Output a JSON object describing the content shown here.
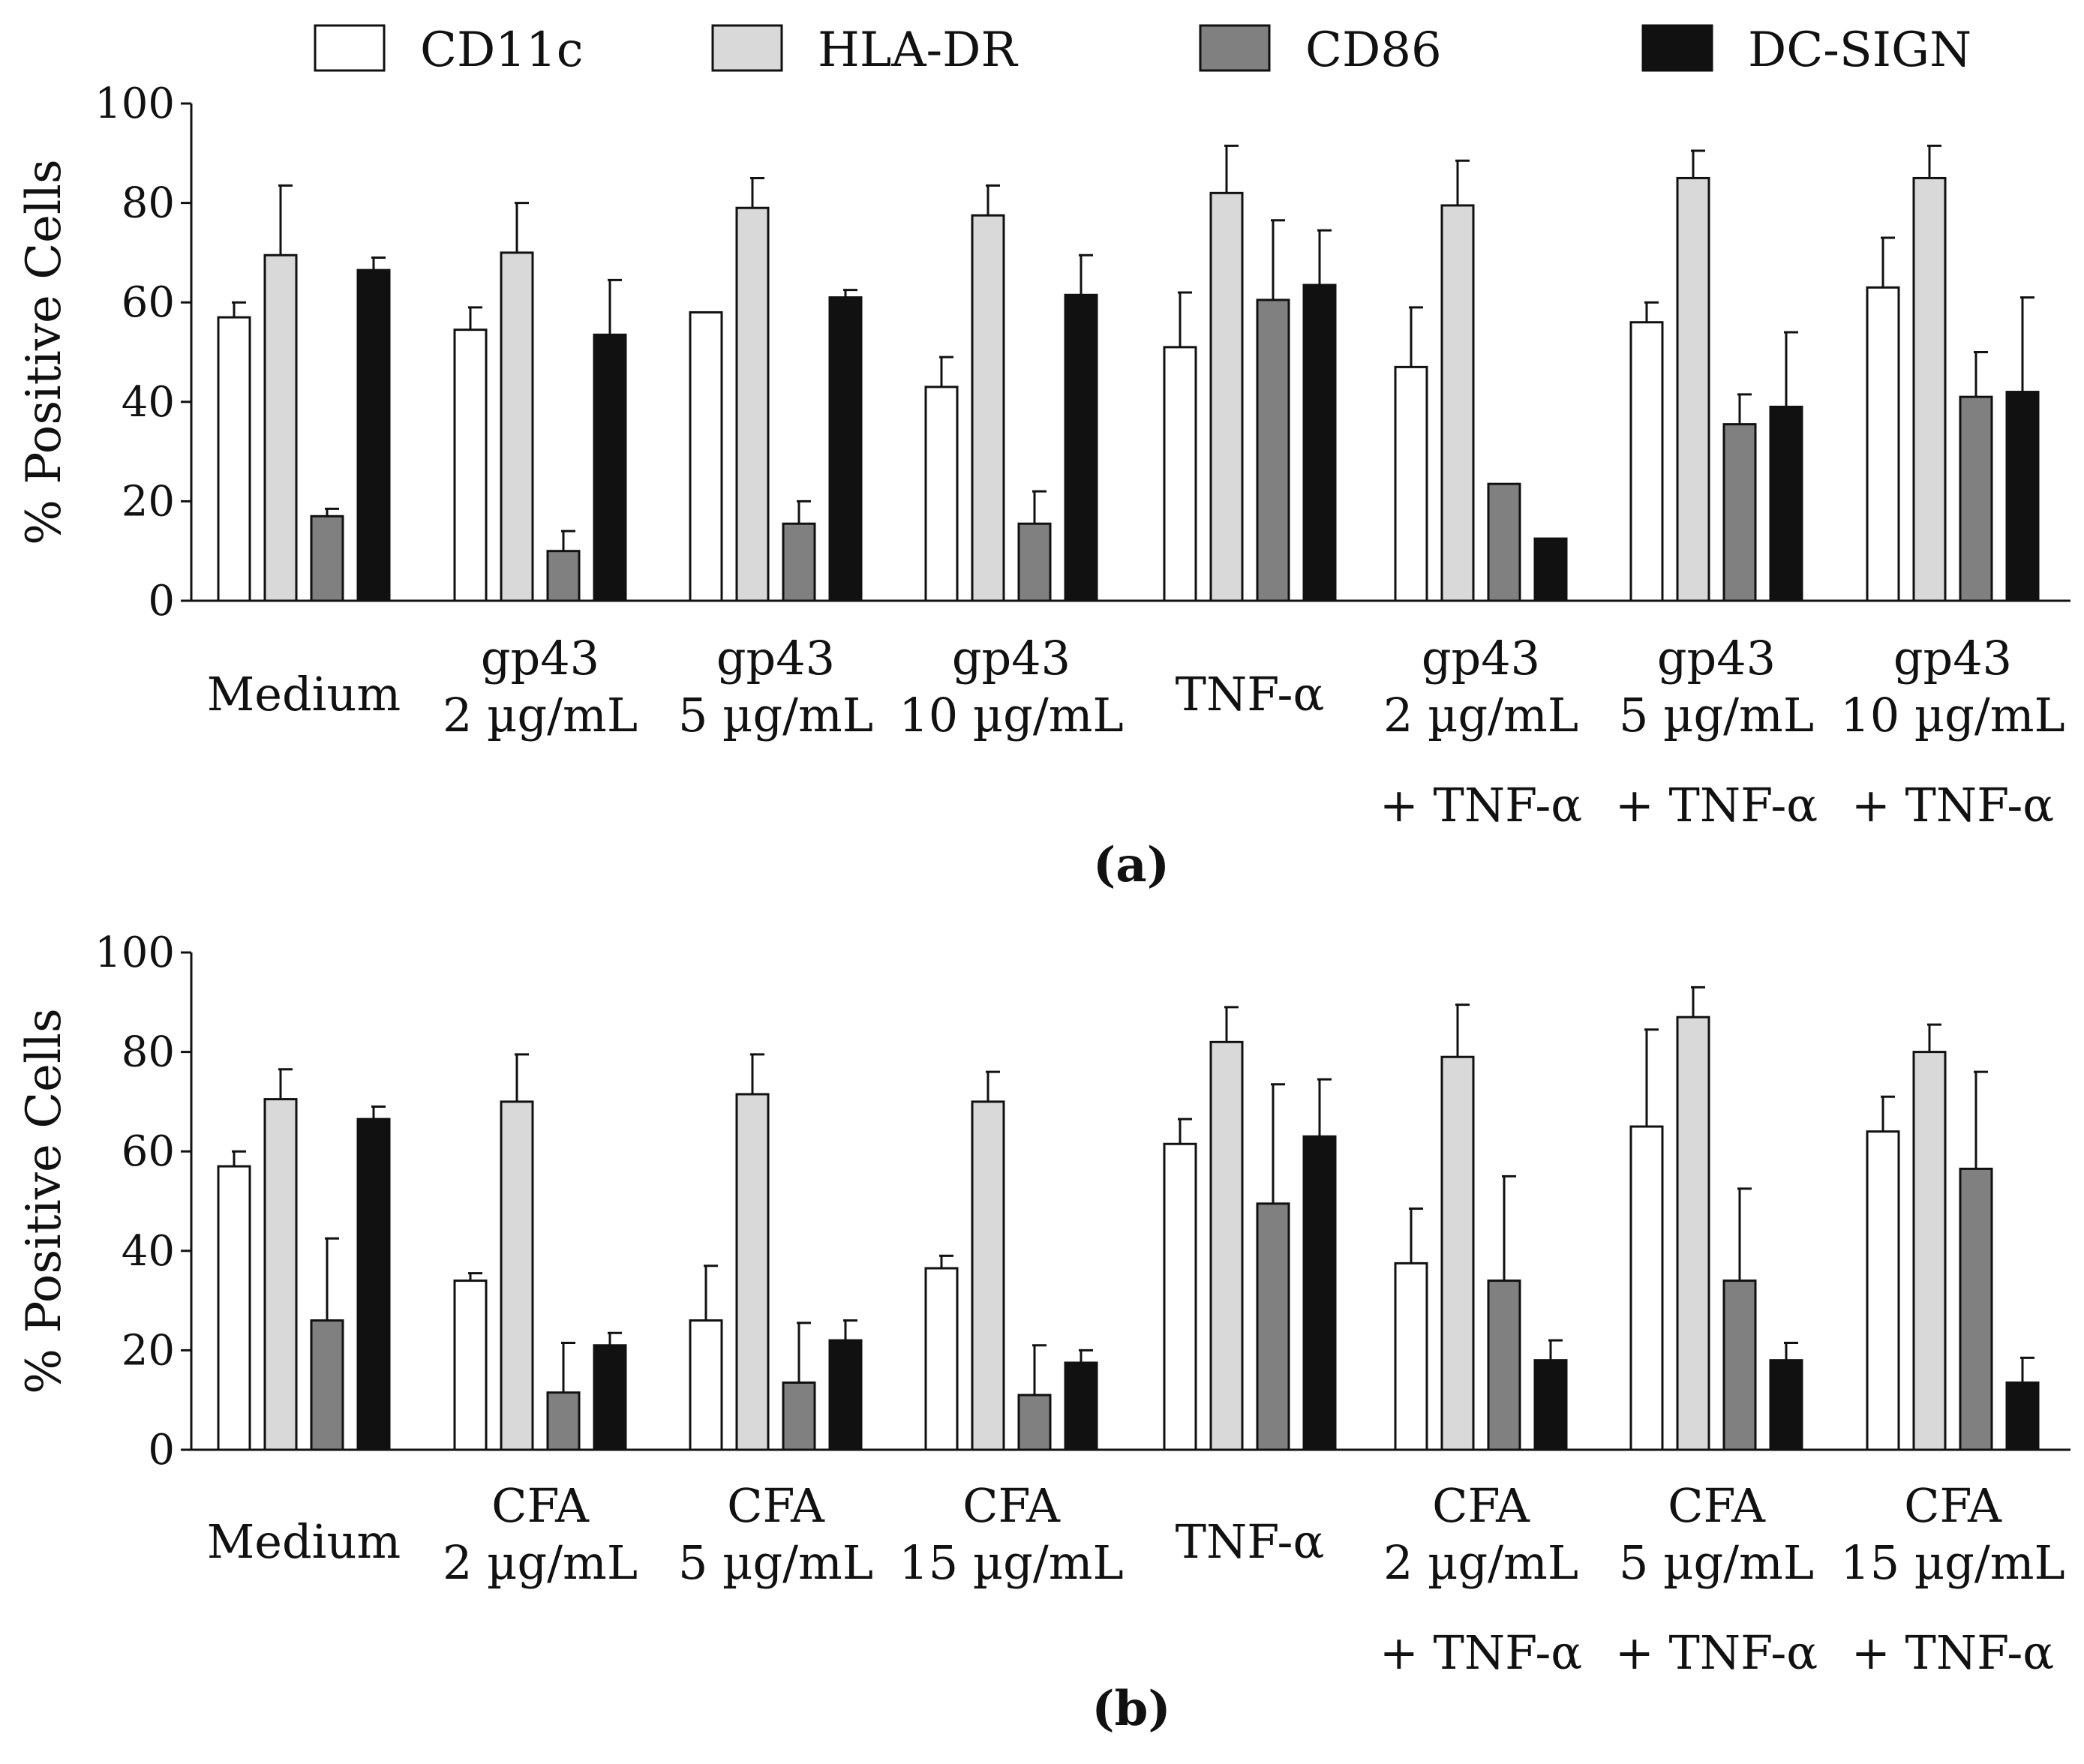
{
  "legend": [
    {
      "name": "CD11c",
      "color": "#ffffff"
    },
    {
      "name": "HLA-DR",
      "color": "#d9d9d9"
    },
    {
      "name": "CD86",
      "color": "#808080"
    },
    {
      "name": "DC-SIGN",
      "color": "#111111"
    }
  ],
  "chart_data": [
    {
      "type": "bar",
      "panel_label": "(a)",
      "ylabel": "% Positive Cells",
      "xlabel": "",
      "ylim": [
        0,
        100
      ],
      "yticks": [
        0,
        20,
        40,
        60,
        80,
        100
      ],
      "grid": false,
      "legend_position": "top",
      "categories": [
        [
          "Medium"
        ],
        [
          "gp43",
          "2 µg/mL"
        ],
        [
          "gp43",
          "5 µg/mL"
        ],
        [
          "gp43",
          "10 µg/mL"
        ],
        [
          "TNF-α"
        ],
        [
          "gp43",
          "2 µg/mL",
          "+ TNF-α"
        ],
        [
          "gp43",
          "5 µg/mL",
          "+ TNF-α"
        ],
        [
          "gp43",
          "10 µg/mL",
          "+ TNF-α"
        ]
      ],
      "series": [
        {
          "name": "CD11c",
          "values": [
            57,
            54.5,
            58,
            43,
            51,
            47,
            56,
            63
          ],
          "errors": [
            3,
            4.5,
            0,
            6,
            11,
            12,
            4,
            10
          ]
        },
        {
          "name": "HLA-DR",
          "values": [
            69.5,
            70,
            79,
            77.5,
            82,
            79.5,
            85,
            85
          ],
          "errors": [
            14,
            10,
            6,
            6,
            9.5,
            9,
            5.5,
            6.5
          ]
        },
        {
          "name": "CD86",
          "values": [
            17,
            10,
            15.5,
            15.5,
            60.5,
            23.5,
            35.5,
            41
          ],
          "errors": [
            1.5,
            4,
            4.5,
            6.5,
            16,
            0,
            6,
            9
          ]
        },
        {
          "name": "DC-SIGN",
          "values": [
            66.5,
            53.5,
            61,
            61.5,
            63.5,
            12.5,
            39,
            42
          ],
          "errors": [
            2.5,
            11,
            1.5,
            8,
            11,
            0,
            15,
            19
          ]
        }
      ]
    },
    {
      "type": "bar",
      "panel_label": "(b)",
      "ylabel": "% Positive Cells",
      "xlabel": "",
      "ylim": [
        0,
        100
      ],
      "yticks": [
        0,
        20,
        40,
        60,
        80,
        100
      ],
      "grid": false,
      "legend_position": "top",
      "categories": [
        [
          "Medium"
        ],
        [
          "CFA",
          "2 µg/mL"
        ],
        [
          "CFA",
          "5 µg/mL"
        ],
        [
          "CFA",
          "15 µg/mL"
        ],
        [
          "TNF-α"
        ],
        [
          "CFA",
          "2 µg/mL",
          "+ TNF-α"
        ],
        [
          "CFA",
          "5 µg/mL",
          "+ TNF-α"
        ],
        [
          "CFA",
          "15 µg/mL",
          "+ TNF-α"
        ]
      ],
      "series": [
        {
          "name": "CD11c",
          "values": [
            57,
            34,
            26,
            36.5,
            61.5,
            37.5,
            65,
            64
          ],
          "errors": [
            3,
            1.5,
            11,
            2.5,
            5,
            11,
            19.5,
            7
          ]
        },
        {
          "name": "HLA-DR",
          "values": [
            70.5,
            70,
            71.5,
            70,
            82,
            79,
            87,
            80
          ],
          "errors": [
            6,
            9.5,
            8,
            6,
            7,
            10.5,
            6,
            5.5
          ]
        },
        {
          "name": "CD86",
          "values": [
            26,
            11.5,
            13.5,
            11,
            49.5,
            34,
            34,
            56.5
          ],
          "errors": [
            16.5,
            10,
            12,
            10,
            24,
            21,
            18.5,
            19.5
          ]
        },
        {
          "name": "DC-SIGN",
          "values": [
            66.5,
            21,
            22,
            17.5,
            63,
            18,
            18,
            13.5
          ],
          "errors": [
            2.5,
            2.5,
            4,
            2.5,
            11.5,
            4,
            3.5,
            5
          ]
        }
      ]
    }
  ]
}
